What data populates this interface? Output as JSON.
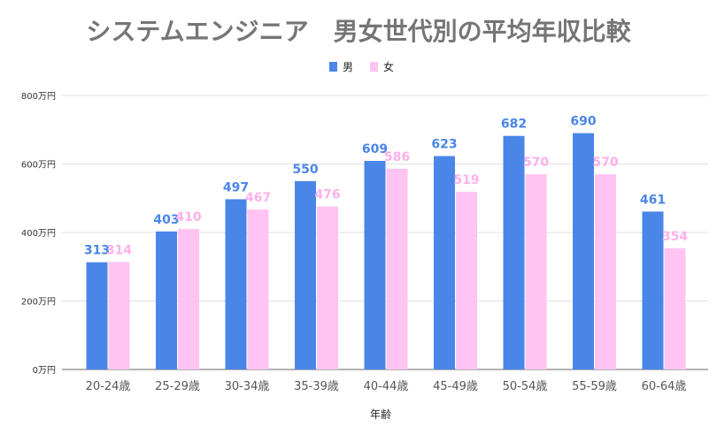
{
  "chart_data": {
    "type": "bar",
    "title": "システムエンジニア　男女世代別の平均年収比較",
    "xlabel": "年齢",
    "ylabel": "",
    "categories": [
      "20-24歳",
      "25-29歳",
      "30-34歳",
      "35-39歳",
      "40-44歳",
      "45-49歳",
      "50-54歳",
      "55-59歳",
      "60-64歳"
    ],
    "series": [
      {
        "name": "男",
        "color": "#4a86e8",
        "label_color": "#4a86e8",
        "values": [
          313,
          403,
          497,
          550,
          609,
          623,
          682,
          690,
          461
        ]
      },
      {
        "name": "女",
        "color": "#ffc4f2",
        "label_color": "#ffb0ea",
        "values": [
          314,
          410,
          467,
          476,
          586,
          519,
          570,
          570,
          354
        ]
      }
    ],
    "ylim": [
      0,
      800
    ],
    "yticks": [
      0,
      200,
      400,
      600,
      800
    ],
    "ytick_labels": [
      "0万円",
      "200万円",
      "400万円",
      "600万円",
      "800万円"
    ],
    "grid": true,
    "legend": "top-center",
    "data_labels": true
  }
}
